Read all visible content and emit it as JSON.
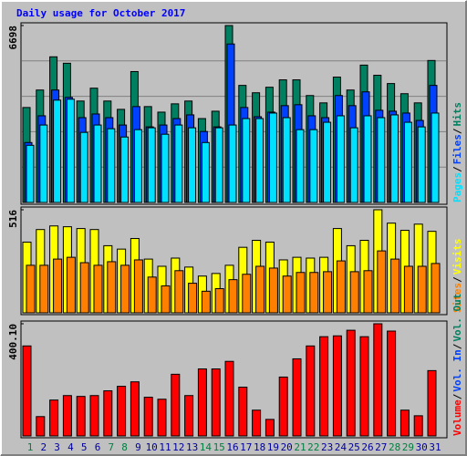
{
  "title": "Daily usage for October 2017",
  "legend_separator": "/",
  "categories": [
    "1",
    "2",
    "3",
    "4",
    "5",
    "6",
    "7",
    "8",
    "9",
    "10",
    "11",
    "12",
    "13",
    "14",
    "15",
    "16",
    "17",
    "18",
    "19",
    "20",
    "21",
    "22",
    "23",
    "24",
    "25",
    "26",
    "27",
    "28",
    "29",
    "30",
    "31"
  ],
  "category_colors": [
    "#008040",
    "#0000a0",
    "#0000a0",
    "#0000a0",
    "#0000a0",
    "#0000a0",
    "#008040",
    "#008040",
    "#0000a0",
    "#0000a0",
    "#0000a0",
    "#0000a0",
    "#0000a0",
    "#008040",
    "#008040",
    "#0000a0",
    "#0000a0",
    "#0000a0",
    "#0000a0",
    "#0000a0",
    "#008040",
    "#008040",
    "#0000a0",
    "#0000a0",
    "#0000a0",
    "#0000a0",
    "#0000a0",
    "#008040",
    "#008040",
    "#0000a0",
    "#0000a0"
  ],
  "chart_data": [
    {
      "type": "bar",
      "ylim": [
        0,
        6698
      ],
      "yticks": [
        6698
      ],
      "series": [
        {
          "name": "Pages",
          "color": "#00e0ff",
          "values": [
            2164,
            2932,
            3874,
            3909,
            2653,
            2932,
            2792,
            2478,
            2757,
            2827,
            2583,
            2932,
            2827,
            2269,
            2827,
            2932,
            3176,
            3176,
            3385,
            3211,
            2757,
            2757,
            3036,
            3281,
            2827,
            3281,
            3211,
            3316,
            3036,
            2862,
            3385
          ]
        },
        {
          "name": "Files",
          "color": "#0040ff",
          "values": [
            2269,
            3281,
            4257,
            3979,
            3211,
            3350,
            3211,
            2932,
            3630,
            2862,
            2932,
            3176,
            3316,
            2687,
            2862,
            6000,
            3595,
            3246,
            3420,
            3665,
            3700,
            3281,
            3211,
            4048,
            3665,
            4188,
            3490,
            3455,
            3385,
            3106,
            4432
          ]
        },
        {
          "name": "Hits",
          "color": "#008060",
          "values": [
            3595,
            4257,
            5514,
            5270,
            3840,
            4327,
            3840,
            3525,
            4955,
            3630,
            3420,
            3734,
            3840,
            3176,
            3455,
            6698,
            4432,
            4153,
            4362,
            4642,
            4642,
            4048,
            3770,
            4746,
            4257,
            5200,
            4816,
            4502,
            4118,
            3770,
            5375
          ]
        }
      ]
    },
    {
      "type": "bar",
      "ylim": [
        0,
        516
      ],
      "yticks": [
        516
      ],
      "series": [
        {
          "name": "Sites",
          "color": "#ff8000",
          "values": [
            238,
            238,
            269,
            278,
            251,
            238,
            256,
            238,
            265,
            179,
            135,
            211,
            148,
            108,
            121,
            166,
            193,
            233,
            224,
            184,
            202,
            202,
            206,
            260,
            206,
            211,
            310,
            269,
            233,
            233,
            247
          ]
        },
        {
          "name": "Visits",
          "color": "#ffff00",
          "values": [
            354,
            417,
            435,
            431,
            422,
            417,
            336,
            319,
            372,
            269,
            233,
            274,
            229,
            184,
            197,
            238,
            328,
            363,
            354,
            265,
            278,
            274,
            278,
            422,
            336,
            363,
            516,
            449,
            413,
            444,
            408
          ]
        }
      ]
    },
    {
      "type": "bar",
      "ylim": [
        0,
        400.1
      ],
      "yticks": [
        {
          "value": 400.1,
          "label": "400.10"
        }
      ],
      "series": [
        {
          "name": "Volume",
          "color": "#ff0000",
          "values": [
            321,
            69,
            128,
            144,
            141,
            144,
            161,
            177,
            193,
            138,
            131,
            220,
            144,
            239,
            239,
            266,
            174,
            92,
            59,
            210,
            275,
            321,
            354,
            357,
            377,
            354,
            400.1,
            374,
            92,
            72,
            233
          ]
        }
      ],
      "legend_only": [
        {
          "name": "Vol. In",
          "color": "#0040ff"
        },
        {
          "name": "Vol. Out",
          "color": "#008060"
        }
      ]
    }
  ]
}
